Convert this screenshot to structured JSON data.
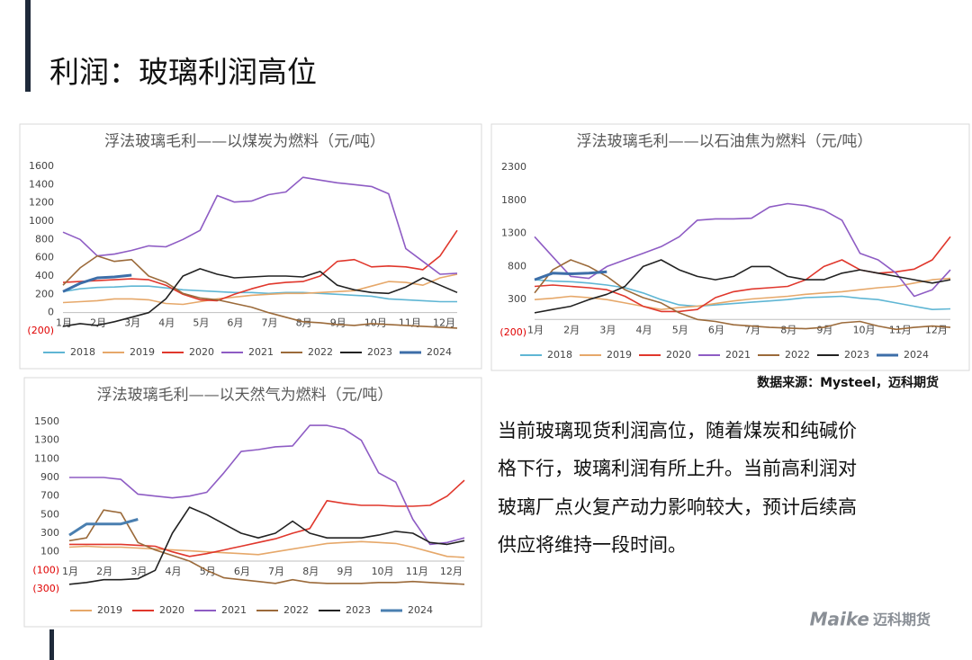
{
  "header": {
    "title": "利润：玻璃利润高位"
  },
  "source": "数据来源：Mysteel，迈科期货",
  "paragraph": [
    "当前玻璃现货利润高位，随着煤炭和纯碱价",
    "格下行，玻璃利润有所上升。当前高利润对",
    "玻璃厂点火复产动力影响较大，预计后续高",
    "供应将维持一段时间。"
  ],
  "logo": {
    "brand": "Maike",
    "name": "迈科期货"
  },
  "chart_data": [
    {
      "type": "line",
      "title": "浮法玻璃毛利——以煤炭为燃料（元/吨）",
      "categories": [
        "1月",
        null,
        "2月",
        null,
        "3月",
        null,
        "4月",
        null,
        "5月",
        null,
        "6月",
        null,
        "7月",
        null,
        "8月",
        null,
        "9月",
        null,
        "10月",
        null,
        "11月",
        null,
        "12月",
        null
      ],
      "ylim": [
        -200,
        1600
      ],
      "yticks": [
        {
          "value": -200,
          "label": "(200)"
        },
        0,
        200,
        400,
        600,
        800,
        1000,
        1200,
        1400,
        1600
      ],
      "grid": false,
      "series": [
        {
          "name": "2018",
          "color": "#5fb6d4",
          "values": [
            230,
            260,
            275,
            280,
            290,
            290,
            270,
            250,
            240,
            230,
            220,
            220,
            210,
            220,
            220,
            210,
            200,
            190,
            180,
            150,
            140,
            130,
            120,
            120
          ]
        },
        {
          "name": "2019",
          "color": "#e6a86a",
          "values": [
            110,
            120,
            130,
            150,
            150,
            140,
            100,
            90,
            120,
            150,
            170,
            190,
            200,
            210,
            210,
            220,
            230,
            240,
            290,
            340,
            330,
            300,
            380,
            420
          ]
        },
        {
          "name": "2020",
          "color": "#e0372c",
          "values": [
            330,
            340,
            350,
            360,
            370,
            360,
            300,
            200,
            140,
            130,
            200,
            260,
            310,
            330,
            340,
            400,
            560,
            580,
            500,
            510,
            500,
            470,
            620,
            900
          ]
        },
        {
          "name": "2021",
          "color": "#8e5cc4",
          "values": [
            880,
            800,
            620,
            640,
            680,
            730,
            720,
            800,
            900,
            1280,
            1210,
            1220,
            1290,
            1320,
            1480,
            1450,
            1420,
            1400,
            1380,
            1300,
            700,
            560,
            420,
            430
          ]
        },
        {
          "name": "2022",
          "color": "#9b6a3a",
          "values": [
            300,
            490,
            620,
            560,
            580,
            400,
            330,
            210,
            160,
            140,
            100,
            60,
            0,
            -50,
            -100,
            -110,
            -130,
            -140,
            -120,
            -130,
            -140,
            -150,
            -160,
            -170
          ]
        },
        {
          "name": "2023",
          "color": "#222222",
          "values": [
            -150,
            -120,
            -140,
            -100,
            -50,
            0,
            150,
            400,
            480,
            420,
            380,
            390,
            400,
            400,
            390,
            450,
            300,
            250,
            220,
            210,
            280,
            380,
            300,
            220
          ]
        },
        {
          "name": "2024",
          "color": "#3d6ea8",
          "width": 3,
          "values": [
            230,
            320,
            380,
            390,
            410,
            null,
            null,
            null,
            null,
            null,
            null,
            null,
            null,
            null,
            null,
            null,
            null,
            null,
            null,
            null,
            null,
            null,
            null,
            null
          ]
        }
      ]
    },
    {
      "type": "line",
      "title": "浮法玻璃毛利——以石油焦为燃料（元/吨）",
      "categories": [
        "1月",
        null,
        "2月",
        null,
        "3月",
        null,
        "4月",
        null,
        "5月",
        null,
        "6月",
        null,
        "7月",
        null,
        "8月",
        null,
        "9月",
        null,
        "10月",
        null,
        "11月",
        null,
        "12月",
        null
      ],
      "ylim": [
        -200,
        2300
      ],
      "yticks": [
        {
          "value": -200,
          "label": "(200)"
        },
        300,
        800,
        1300,
        1800,
        2300
      ],
      "grid": false,
      "series": [
        {
          "name": "2018",
          "color": "#5fb6d4",
          "values": [
            600,
            580,
            570,
            550,
            520,
            480,
            400,
            300,
            220,
            200,
            220,
            240,
            260,
            280,
            300,
            330,
            340,
            350,
            320,
            300,
            250,
            200,
            150,
            160
          ]
        },
        {
          "name": "2019",
          "color": "#e6a86a",
          "values": [
            300,
            320,
            350,
            330,
            300,
            250,
            200,
            150,
            180,
            200,
            240,
            280,
            310,
            330,
            350,
            380,
            400,
            420,
            450,
            480,
            500,
            550,
            600,
            620
          ]
        },
        {
          "name": "2020",
          "color": "#e0372c",
          "values": [
            500,
            520,
            500,
            480,
            450,
            350,
            200,
            120,
            120,
            150,
            330,
            420,
            460,
            480,
            500,
            600,
            800,
            900,
            750,
            700,
            720,
            760,
            900,
            1250
          ]
        },
        {
          "name": "2021",
          "color": "#8e5cc4",
          "values": [
            1250,
            950,
            650,
            620,
            800,
            900,
            1000,
            1100,
            1250,
            1500,
            1520,
            1520,
            1530,
            1700,
            1750,
            1720,
            1650,
            1500,
            1000,
            900,
            700,
            350,
            450,
            750
          ]
        },
        {
          "name": "2022",
          "color": "#9b6a3a",
          "values": [
            400,
            750,
            900,
            800,
            650,
            450,
            330,
            250,
            100,
            0,
            -30,
            -80,
            -100,
            -120,
            -130,
            -140,
            -120,
            -50,
            -30,
            -100,
            -150,
            -120,
            -100,
            -120
          ]
        },
        {
          "name": "2023",
          "color": "#222222",
          "values": [
            100,
            150,
            200,
            300,
            380,
            500,
            800,
            900,
            750,
            650,
            600,
            650,
            800,
            800,
            650,
            600,
            600,
            700,
            750,
            700,
            650,
            600,
            550,
            600
          ]
        },
        {
          "name": "2024",
          "color": "#3d6ea8",
          "width": 3,
          "values": [
            600,
            700,
            690,
            700,
            720,
            null,
            null,
            null,
            null,
            null,
            null,
            null,
            null,
            null,
            null,
            null,
            null,
            null,
            null,
            null,
            null,
            null,
            null,
            null
          ]
        }
      ]
    },
    {
      "type": "line",
      "title": "浮法玻璃毛利——以天然气为燃料（元/吨）",
      "categories": [
        "1月",
        null,
        "2月",
        null,
        "3月",
        null,
        "4月",
        null,
        "5月",
        null,
        "6月",
        null,
        "7月",
        null,
        "8月",
        null,
        "9月",
        null,
        "10月",
        null,
        "11月",
        null,
        "12月",
        null
      ],
      "ylim": [
        -300,
        1500
      ],
      "yticks": [
        {
          "value": -300,
          "label": "(300)"
        },
        {
          "value": -100,
          "label": "(100)"
        },
        100,
        300,
        500,
        700,
        900,
        1100,
        1300,
        1500
      ],
      "grid": false,
      "series": [
        {
          "name": "2019",
          "color": "#e6a86a",
          "values": [
            150,
            160,
            150,
            150,
            140,
            130,
            120,
            110,
            100,
            90,
            80,
            70,
            100,
            130,
            160,
            190,
            200,
            210,
            200,
            190,
            150,
            100,
            50,
            40
          ]
        },
        {
          "name": "2020",
          "color": "#e0372c",
          "values": [
            180,
            180,
            180,
            180,
            170,
            160,
            100,
            50,
            80,
            120,
            160,
            200,
            240,
            300,
            350,
            650,
            620,
            600,
            600,
            590,
            590,
            600,
            700,
            870
          ]
        },
        {
          "name": "2021",
          "color": "#8e5cc4",
          "values": [
            900,
            900,
            900,
            880,
            720,
            700,
            680,
            700,
            740,
            950,
            1180,
            1200,
            1230,
            1240,
            1460,
            1460,
            1420,
            1300,
            950,
            850,
            450,
            180,
            200,
            250
          ]
        },
        {
          "name": "2022",
          "color": "#9b6a3a",
          "values": [
            220,
            250,
            550,
            520,
            200,
            120,
            60,
            0,
            -100,
            -180,
            -200,
            -220,
            -240,
            -200,
            -230,
            -240,
            -240,
            -240,
            -230,
            -230,
            -220,
            -230,
            -240,
            -250
          ]
        },
        {
          "name": "2023",
          "color": "#222222",
          "values": [
            -250,
            -230,
            -200,
            -200,
            -190,
            -100,
            300,
            580,
            500,
            400,
            300,
            250,
            300,
            430,
            300,
            250,
            250,
            250,
            280,
            320,
            300,
            200,
            180,
            220
          ]
        },
        {
          "name": "2024",
          "color": "#4a7fb0",
          "width": 3,
          "values": [
            280,
            400,
            400,
            400,
            450,
            null,
            null,
            null,
            null,
            null,
            null,
            null,
            null,
            null,
            null,
            null,
            null,
            null,
            null,
            null,
            null,
            null,
            null,
            null
          ]
        }
      ]
    }
  ]
}
